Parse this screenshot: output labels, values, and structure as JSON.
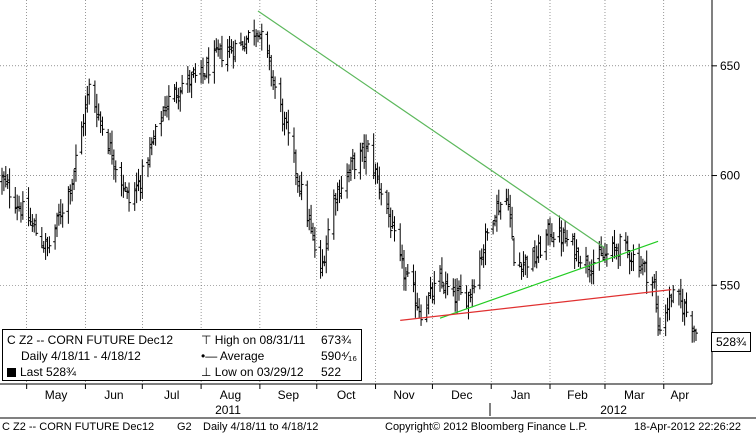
{
  "chart_data": {
    "type": "ohlc",
    "x_range": [
      "2011-04-18",
      "2012-04-18"
    ],
    "y_range": [
      505,
      680
    ],
    "y_axis_side": "right",
    "y_ticks": [
      550,
      600,
      650
    ],
    "x_ticks": [
      "May",
      "Jun",
      "Jul",
      "Aug",
      "Sep",
      "Oct",
      "Nov",
      "Dec",
      "Jan",
      "Feb",
      "Mar",
      "Apr"
    ],
    "year_labels": [
      "2011",
      "2012"
    ],
    "grid": true,
    "series_color": "#000000",
    "approx_closes": [
      [
        "2011-04-18",
        598
      ],
      [
        "2011-05-02",
        580
      ],
      [
        "2011-05-12",
        566
      ],
      [
        "2011-05-25",
        598
      ],
      [
        "2011-06-03",
        640
      ],
      [
        "2011-06-13",
        615
      ],
      [
        "2011-06-24",
        588
      ],
      [
        "2011-07-01",
        600
      ],
      [
        "2011-07-13",
        632
      ],
      [
        "2011-07-22",
        642
      ],
      [
        "2011-08-01",
        645
      ],
      [
        "2011-08-10",
        655
      ],
      [
        "2011-08-22",
        660
      ],
      [
        "2011-08-31",
        668
      ],
      [
        "2011-09-06",
        650
      ],
      [
        "2011-09-15",
        620
      ],
      [
        "2011-09-26",
        582
      ],
      [
        "2011-10-03",
        555
      ],
      [
        "2011-10-10",
        590
      ],
      [
        "2011-10-20",
        605
      ],
      [
        "2011-10-28",
        612
      ],
      [
        "2011-11-07",
        585
      ],
      [
        "2011-11-14",
        560
      ],
      [
        "2011-11-25",
        538
      ],
      [
        "2011-12-05",
        552
      ],
      [
        "2011-12-12",
        545
      ],
      [
        "2011-12-20",
        545
      ],
      [
        "2012-01-03",
        585
      ],
      [
        "2012-01-10",
        590
      ],
      [
        "2012-01-13",
        560
      ],
      [
        "2012-01-24",
        562
      ],
      [
        "2012-02-01",
        575
      ],
      [
        "2012-02-10",
        570
      ],
      [
        "2012-02-21",
        560
      ],
      [
        "2012-03-01",
        563
      ],
      [
        "2012-03-09",
        568
      ],
      [
        "2012-03-20",
        560
      ],
      [
        "2012-03-27",
        550
      ],
      [
        "2012-03-29",
        530
      ],
      [
        "2012-04-05",
        545
      ],
      [
        "2012-04-12",
        540
      ],
      [
        "2012-04-18",
        528.75
      ]
    ],
    "trendlines": [
      {
        "color": "#5cb85c",
        "from": [
          "2011-08-31",
          675
        ],
        "to": [
          "2012-03-01",
          567
        ]
      },
      {
        "color": "#22cc22",
        "from": [
          "2011-12-05",
          535
        ],
        "to": [
          "2012-03-29",
          570
        ]
      },
      {
        "color": "#e03030",
        "from": [
          "2011-11-14",
          534
        ],
        "to": [
          "2012-04-05",
          548
        ]
      }
    ]
  },
  "legend": {
    "line1_ticker": "C Z2 -- CORN FUTURE  Dec12",
    "line1_high_label": "High on 08/31/11",
    "line1_high_value": "673¾",
    "line2_range": "Daily 4/18/11 - 4/18/12",
    "line2_avg_label": "Average",
    "line2_avg_value": "590⁴⁄₁₆",
    "line3_last": "Last 528¾",
    "line3_low_label": "Low on 03/29/12",
    "line3_low_value": "522"
  },
  "last_tag": "528¾",
  "footer": {
    "ticker": "C Z2 -- CORN FUTURE  Dec12",
    "page": "G2",
    "range": "Daily  4/18/11 to 4/18/12",
    "copyright": "Copyright© 2012 Bloomberg Finance L.P.",
    "timestamp": "18-Apr-2012 22:26:22"
  }
}
